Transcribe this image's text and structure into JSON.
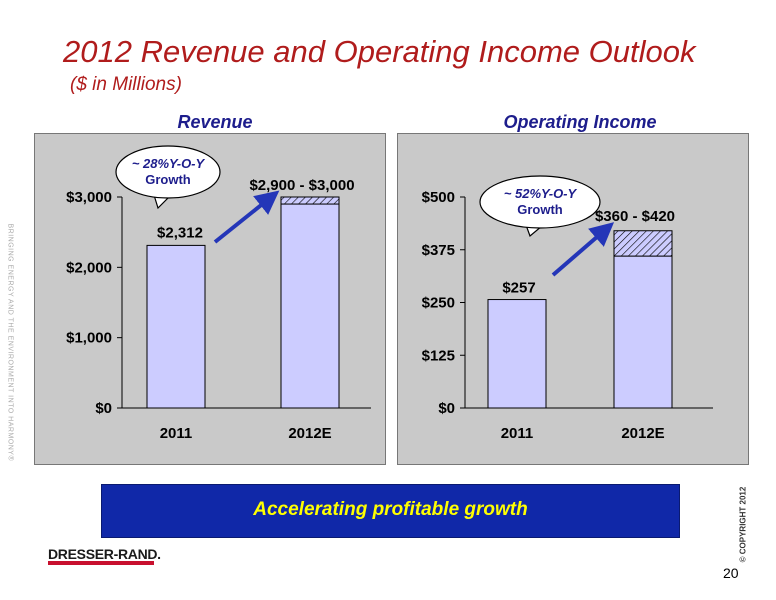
{
  "slide": {
    "title": "2012 Revenue and Operating Income Outlook",
    "subtitle": "($ in Millions)",
    "banner": "Accelerating profitable growth",
    "logo": "DRESSER-RAND.",
    "page_number": "20",
    "copyright": "© COPYRIGHT 2012",
    "side_text": "BRINGING ENERGY AND THE ENVIRONMENT INTO HARMONY®"
  },
  "chart_data": [
    {
      "type": "bar",
      "title": "Revenue",
      "categories": [
        "2011",
        "2012E"
      ],
      "values": [
        2312,
        2900
      ],
      "range_high": [
        null,
        3000
      ],
      "data_labels": [
        "$2,312",
        "$2,900 - $3,000"
      ],
      "yticks": [
        0,
        1000,
        2000,
        3000
      ],
      "ytick_labels": [
        "$0",
        "$1,000",
        "$2,000",
        "$3,000"
      ],
      "ylim": [
        0,
        3000
      ],
      "callout": [
        "~ 28%Y-O-Y",
        "Growth"
      ],
      "colors": {
        "bar": "#ccccff",
        "range": "#ccccff",
        "panel": "#c9c9c9",
        "arrow": "#2436b8",
        "label": "#1d1d8c"
      }
    },
    {
      "type": "bar",
      "title": "Operating Income",
      "categories": [
        "2011",
        "2012E"
      ],
      "values": [
        257,
        360
      ],
      "range_high": [
        null,
        420
      ],
      "data_labels": [
        "$257",
        "$360 - $420"
      ],
      "yticks": [
        0,
        125,
        250,
        375,
        500
      ],
      "ytick_labels": [
        "$0",
        "$125",
        "$250",
        "$375",
        "$500"
      ],
      "ylim": [
        0,
        500
      ],
      "callout": [
        "~ 52%Y-O-Y",
        "Growth"
      ],
      "colors": {
        "bar": "#ccccff",
        "range": "#ccccff",
        "panel": "#c9c9c9",
        "arrow": "#2436b8",
        "label": "#1d1d8c"
      }
    }
  ]
}
